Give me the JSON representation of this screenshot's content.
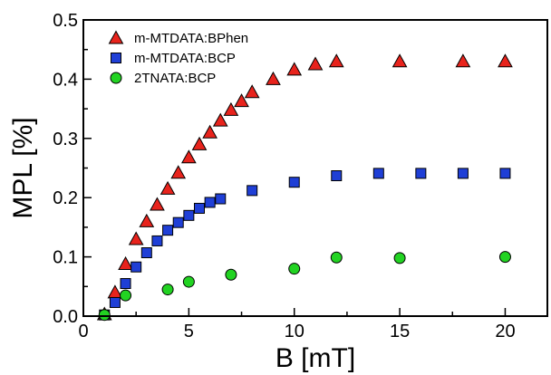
{
  "chart_data": {
    "type": "scatter",
    "xlabel": "B [mT]",
    "ylabel": "MPL [%]",
    "xlim": [
      0,
      22
    ],
    "ylim": [
      0.0,
      0.5
    ],
    "x_ticks": [
      0,
      5,
      10,
      15,
      20
    ],
    "x_tick_labels": [
      "0",
      "5",
      "10",
      "15",
      "20"
    ],
    "y_ticks": [
      0.0,
      0.1,
      0.2,
      0.3,
      0.4,
      0.5
    ],
    "y_tick_labels": [
      "0.0",
      "0.1",
      "0.2",
      "0.3",
      "0.4",
      "0.5"
    ],
    "grid": false,
    "legend_position": "top-left",
    "series": [
      {
        "name": "m-MTDATA:BPhen",
        "marker": "triangle",
        "color": "#e8231c",
        "x": [
          1,
          1.5,
          2,
          2.5,
          3,
          3.5,
          4,
          4.5,
          5,
          5.5,
          6,
          6.5,
          7,
          7.5,
          8,
          9,
          10,
          11,
          12,
          15,
          18,
          20
        ],
        "y": [
          0.003,
          0.04,
          0.088,
          0.13,
          0.16,
          0.188,
          0.215,
          0.242,
          0.268,
          0.29,
          0.31,
          0.33,
          0.348,
          0.363,
          0.378,
          0.4,
          0.416,
          0.425,
          0.43,
          0.43,
          0.43,
          0.43
        ]
      },
      {
        "name": "m-MTDATA:BCP",
        "marker": "square",
        "color": "#1f3fd6",
        "x": [
          1,
          1.5,
          2,
          2.5,
          3,
          3.5,
          4,
          4.5,
          5,
          5.5,
          6,
          6.5,
          8,
          10,
          12,
          14,
          16,
          18,
          20
        ],
        "y": [
          0.002,
          0.023,
          0.055,
          0.083,
          0.107,
          0.127,
          0.145,
          0.158,
          0.17,
          0.182,
          0.192,
          0.198,
          0.212,
          0.226,
          0.237,
          0.241,
          0.241,
          0.241,
          0.241
        ]
      },
      {
        "name": "2TNATA:BCP",
        "marker": "circle",
        "color": "#22d322",
        "x": [
          1,
          2,
          4,
          5,
          7,
          10,
          12,
          15,
          20
        ],
        "y": [
          0.002,
          0.035,
          0.045,
          0.058,
          0.07,
          0.08,
          0.099,
          0.098,
          0.1
        ]
      }
    ]
  }
}
